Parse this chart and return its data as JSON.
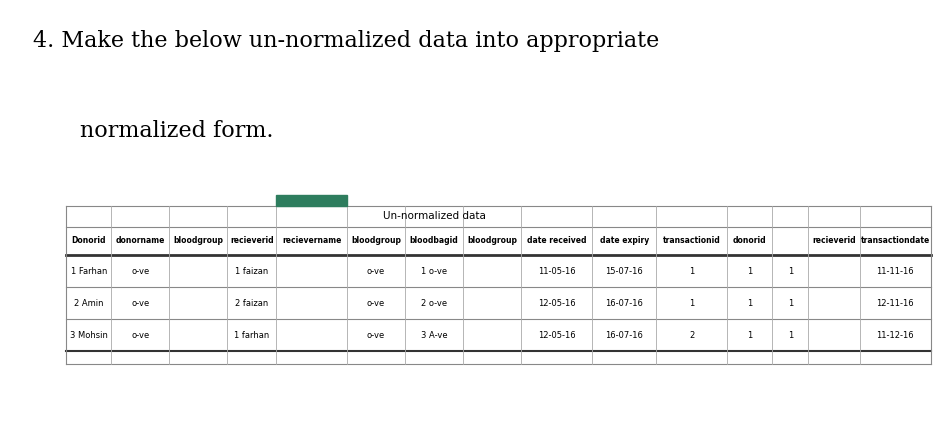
{
  "title_line1": "4. Make the below un-normalized data into appropriate",
  "title_line2": "   normalized form.",
  "subtitle": "Un-normalized data",
  "col_headers": [
    "Donorid",
    "donorname",
    "bloodgroup",
    "recieverid",
    "recievername",
    "bloodgroup",
    "bloodbagid",
    "bloodgroup",
    "date received",
    "date expiry",
    "transactionid",
    "donorid",
    "",
    "recieverid",
    "transactiondate"
  ],
  "rows": [
    [
      "1 Farhan",
      "o-ve",
      "",
      "1 faizan",
      "o-ve",
      "",
      "1 o-ve",
      "",
      "11-05-16",
      "15-07-16",
      "1",
      "1",
      "1",
      "",
      "11-11-16"
    ],
    [
      "2 Amin",
      "o-ve",
      "",
      "2 faizan",
      "o-ve",
      "",
      "2 o-ve",
      "",
      "12-05-16",
      "16-07-16",
      "1",
      "1",
      "1",
      "",
      "12-11-16"
    ],
    [
      "3 Mohsin",
      "o-ve",
      "",
      "1 farhan",
      "o-ve",
      "",
      "3 A-ve",
      "",
      "12-05-16",
      "16-07-16",
      "2",
      "1",
      "1",
      "",
      "11-12-16"
    ]
  ],
  "green_bar_color": "#2e7d5e",
  "line_color_thin": "#aaaaaa",
  "line_color_thick": "#222222",
  "background_color": "#ffffff",
  "title_color": "#000000",
  "col_rel_widths": [
    3.5,
    4.5,
    4.5,
    3.8,
    5.5,
    4.5,
    4.5,
    4.5,
    5.5,
    5.0,
    5.5,
    3.5,
    2.8,
    4.0,
    5.5
  ]
}
